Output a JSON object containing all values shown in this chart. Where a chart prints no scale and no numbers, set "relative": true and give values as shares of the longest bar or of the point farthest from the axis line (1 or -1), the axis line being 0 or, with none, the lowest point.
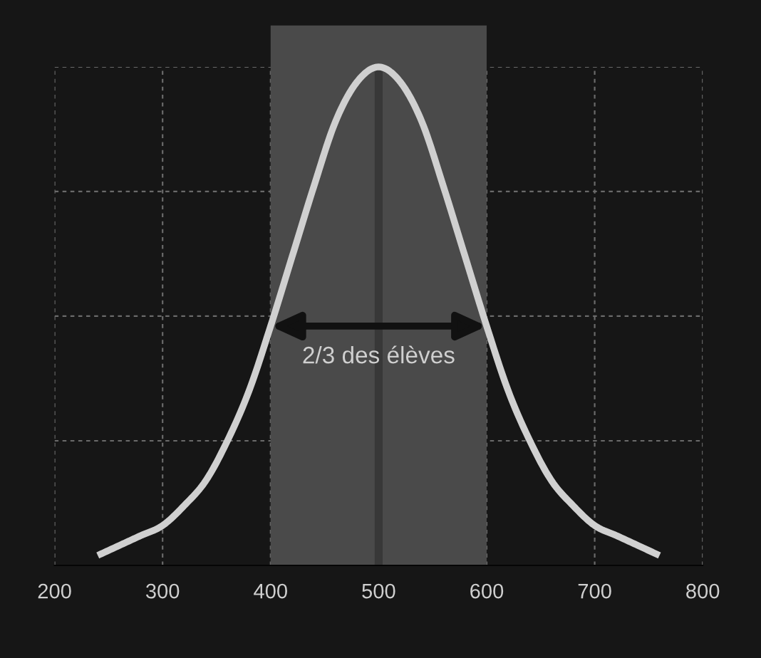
{
  "chart_data": {
    "type": "line",
    "relative": true,
    "x": [
      240,
      260,
      280,
      300,
      320,
      340,
      360,
      380,
      400,
      420,
      440,
      460,
      480,
      500,
      520,
      540,
      560,
      580,
      600,
      620,
      640,
      660,
      680,
      700,
      720,
      740,
      760
    ],
    "series": [
      {
        "color": "#d0d0d0",
        "values": [
          0.02,
          0.04,
          0.06,
          0.08,
          0.12,
          0.17,
          0.25,
          0.35,
          0.48,
          0.62,
          0.76,
          0.89,
          0.97,
          1.0,
          0.97,
          0.89,
          0.76,
          0.62,
          0.48,
          0.35,
          0.25,
          0.17,
          0.12,
          0.08,
          0.06,
          0.04,
          0.02
        ]
      }
    ],
    "xlim": [
      200,
      800
    ],
    "xticks": [
      200,
      300,
      400,
      500,
      600,
      700,
      800
    ],
    "bands": [
      {
        "axis": "x",
        "from": 400,
        "to": 600,
        "label": "2/3 des élèves",
        "color": "#4a4a4a"
      }
    ],
    "ref_lines": [
      {
        "axis": "x",
        "value": 500,
        "color": "#383838"
      }
    ],
    "grid": true,
    "tick_labels": "x",
    "marker": "none",
    "line_style": "solid",
    "legend": false
  }
}
